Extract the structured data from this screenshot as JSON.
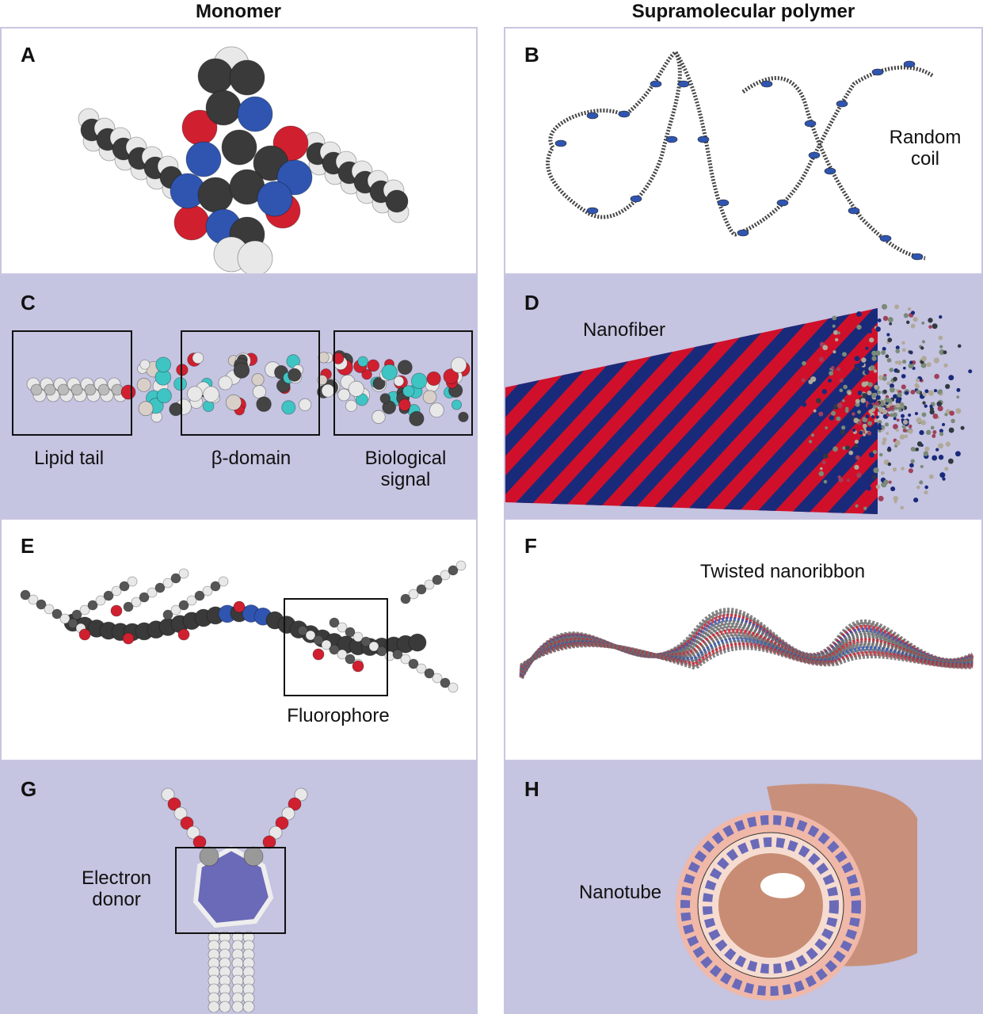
{
  "columns": {
    "left": "Monomer",
    "right": "Supramolecular polymer"
  },
  "panels": {
    "A": {
      "label": "A"
    },
    "B": {
      "label": "B",
      "annotation_line1": "Random",
      "annotation_line2": "coil"
    },
    "C": {
      "label": "C",
      "region1": "Lipid tail",
      "region2": "β-domain",
      "region3_line1": "Biological",
      "region3_line2": "signal"
    },
    "D": {
      "label": "D",
      "annotation": "Nanofiber"
    },
    "E": {
      "label": "E",
      "annotation": "Fluorophore"
    },
    "F": {
      "label": "F",
      "annotation": "Twisted nanoribbon"
    },
    "G": {
      "label": "G",
      "annotation_line1": "Electron",
      "annotation_line2": "donor"
    },
    "H": {
      "label": "H",
      "annotation": "Nanotube"
    }
  },
  "colors": {
    "atom_carbon": "#3a3a3a",
    "atom_hydrogen": "#e8e8e8",
    "atom_oxygen": "#d02030",
    "atom_nitrogen": "#2f55b0",
    "atom_cyan": "#3fc4c4",
    "fiber_blue": "#1a2a7a",
    "fiber_red": "#d0102a",
    "tube_pink": "#f0b8a8",
    "tube_purple": "#6a6ab8"
  }
}
